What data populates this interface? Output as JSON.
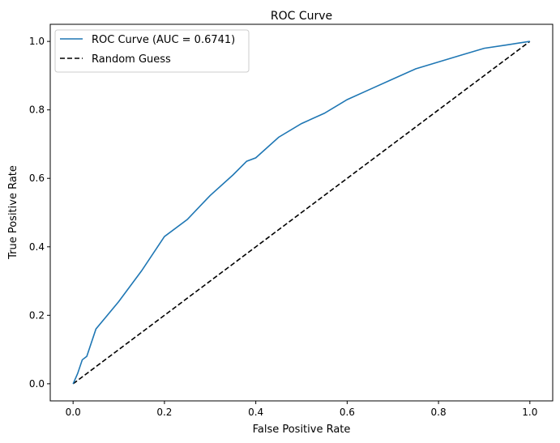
{
  "chart_data": {
    "type": "line",
    "title": "ROC Curve",
    "xlabel": "False Positive Rate",
    "ylabel": "True Positive Rate",
    "xlim": [
      -0.05,
      1.05
    ],
    "ylim": [
      -0.05,
      1.05
    ],
    "xticks": [
      "0.0",
      "0.2",
      "0.4",
      "0.6",
      "0.8",
      "1.0"
    ],
    "yticks": [
      "0.0",
      "0.2",
      "0.4",
      "0.6",
      "0.8",
      "1.0"
    ],
    "grid": false,
    "legend_position": "top-left",
    "series": [
      {
        "name": "ROC Curve (AUC = 0.6741)",
        "color": "#1f77b4",
        "style": "solid",
        "x": [
          0,
          0.01,
          0.02,
          0.03,
          0.05,
          0.1,
          0.15,
          0.2,
          0.25,
          0.3,
          0.35,
          0.38,
          0.4,
          0.45,
          0.5,
          0.55,
          0.6,
          0.65,
          0.7,
          0.75,
          0.8,
          0.85,
          0.9,
          0.95,
          1
        ],
        "y": [
          0,
          0.03,
          0.07,
          0.08,
          0.16,
          0.24,
          0.33,
          0.43,
          0.48,
          0.55,
          0.61,
          0.65,
          0.66,
          0.72,
          0.76,
          0.79,
          0.83,
          0.86,
          0.89,
          0.92,
          0.94,
          0.96,
          0.98,
          0.99,
          1
        ]
      },
      {
        "name": "Random Guess",
        "color": "#000000",
        "style": "dashed",
        "x": [
          0,
          1
        ],
        "y": [
          0,
          1
        ]
      }
    ]
  }
}
